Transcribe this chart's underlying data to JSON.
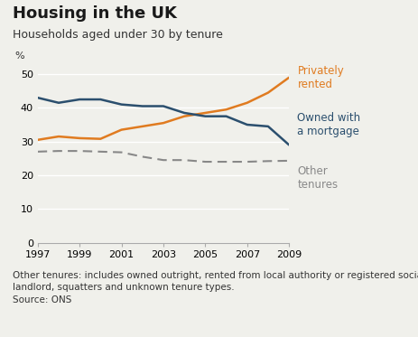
{
  "title": "Housing in the UK",
  "subtitle": "Households aged under 30 by tenure",
  "ylabel": "%",
  "footnote": "Other tenures: includes owned outright, rented from local authority or registered social\nlandlord, squatters and unknown tenure types.\nSource: ONS",
  "years": [
    1997,
    1998,
    1999,
    2000,
    2001,
    2002,
    2003,
    2004,
    2005,
    2006,
    2007,
    2008,
    2009
  ],
  "privately_rented": [
    30.5,
    31.5,
    31.0,
    30.8,
    33.5,
    34.5,
    35.5,
    37.5,
    38.5,
    39.5,
    41.5,
    44.5,
    49.0
  ],
  "owned_with_mortgage": [
    43.0,
    41.5,
    42.5,
    42.5,
    41.0,
    40.5,
    40.5,
    38.5,
    37.5,
    37.5,
    35.0,
    34.5,
    29.0
  ],
  "other_tenures": [
    27.0,
    27.2,
    27.2,
    27.0,
    26.8,
    25.5,
    24.5,
    24.5,
    24.0,
    24.0,
    24.0,
    24.2,
    24.3
  ],
  "color_privately_rented": "#e07b20",
  "color_owned_mortgage": "#2b4f6e",
  "color_other_tenures": "#888888",
  "ylim": [
    0,
    52
  ],
  "yticks": [
    0,
    10,
    20,
    30,
    40,
    50
  ],
  "xticks": [
    1997,
    1999,
    2001,
    2003,
    2005,
    2007,
    2009
  ],
  "label_privately_rented": "Privately\nrented",
  "label_owned_mortgage": "Owned with\na mortgage",
  "label_other_tenures": "Other\ntenures",
  "background_color": "#f0f0eb",
  "grid_color": "#ffffff",
  "title_fontsize": 13,
  "subtitle_fontsize": 9,
  "axis_fontsize": 8,
  "label_fontsize": 8.5,
  "footnote_fontsize": 7.5
}
